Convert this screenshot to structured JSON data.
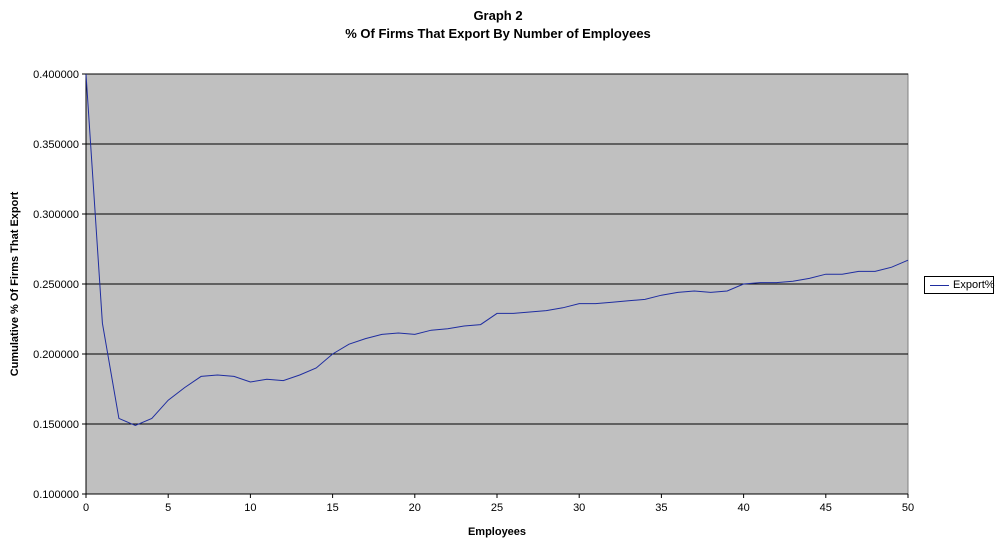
{
  "chart_data": {
    "type": "line",
    "title": "Graph 2",
    "subtitle": "% Of Firms That Export By Number of Employees",
    "xlabel": "Employees",
    "ylabel": "Cumulative % Of Firms That Export",
    "xlim": [
      0,
      50
    ],
    "ylim": [
      0.1,
      0.4
    ],
    "xticks": [
      "0",
      "5",
      "10",
      "15",
      "20",
      "25",
      "30",
      "35",
      "40",
      "45",
      "50"
    ],
    "yticks": [
      "0.100000",
      "0.150000",
      "0.200000",
      "0.250000",
      "0.300000",
      "0.350000",
      "0.400000"
    ],
    "grid": "horizontal",
    "legend": "right",
    "plot_background": "#c0c0c0",
    "series": [
      {
        "name": "Export%",
        "color": "#1f2da0",
        "x": [
          0,
          1,
          2,
          3,
          4,
          5,
          6,
          7,
          8,
          9,
          10,
          11,
          12,
          13,
          14,
          15,
          16,
          17,
          18,
          19,
          20,
          21,
          22,
          23,
          24,
          25,
          26,
          27,
          28,
          29,
          30,
          31,
          32,
          33,
          34,
          35,
          36,
          37,
          38,
          39,
          40,
          41,
          42,
          43,
          44,
          45,
          46,
          47,
          48,
          49,
          50
        ],
        "y": [
          0.4,
          0.222,
          0.154,
          0.149,
          0.154,
          0.167,
          0.176,
          0.184,
          0.185,
          0.184,
          0.18,
          0.182,
          0.181,
          0.185,
          0.19,
          0.2,
          0.207,
          0.211,
          0.214,
          0.215,
          0.214,
          0.217,
          0.218,
          0.22,
          0.221,
          0.229,
          0.229,
          0.23,
          0.231,
          0.233,
          0.236,
          0.236,
          0.237,
          0.238,
          0.239,
          0.242,
          0.244,
          0.245,
          0.244,
          0.245,
          0.25,
          0.251,
          0.251,
          0.252,
          0.254,
          0.257,
          0.257,
          0.259,
          0.259,
          0.262,
          0.267
        ]
      }
    ]
  }
}
